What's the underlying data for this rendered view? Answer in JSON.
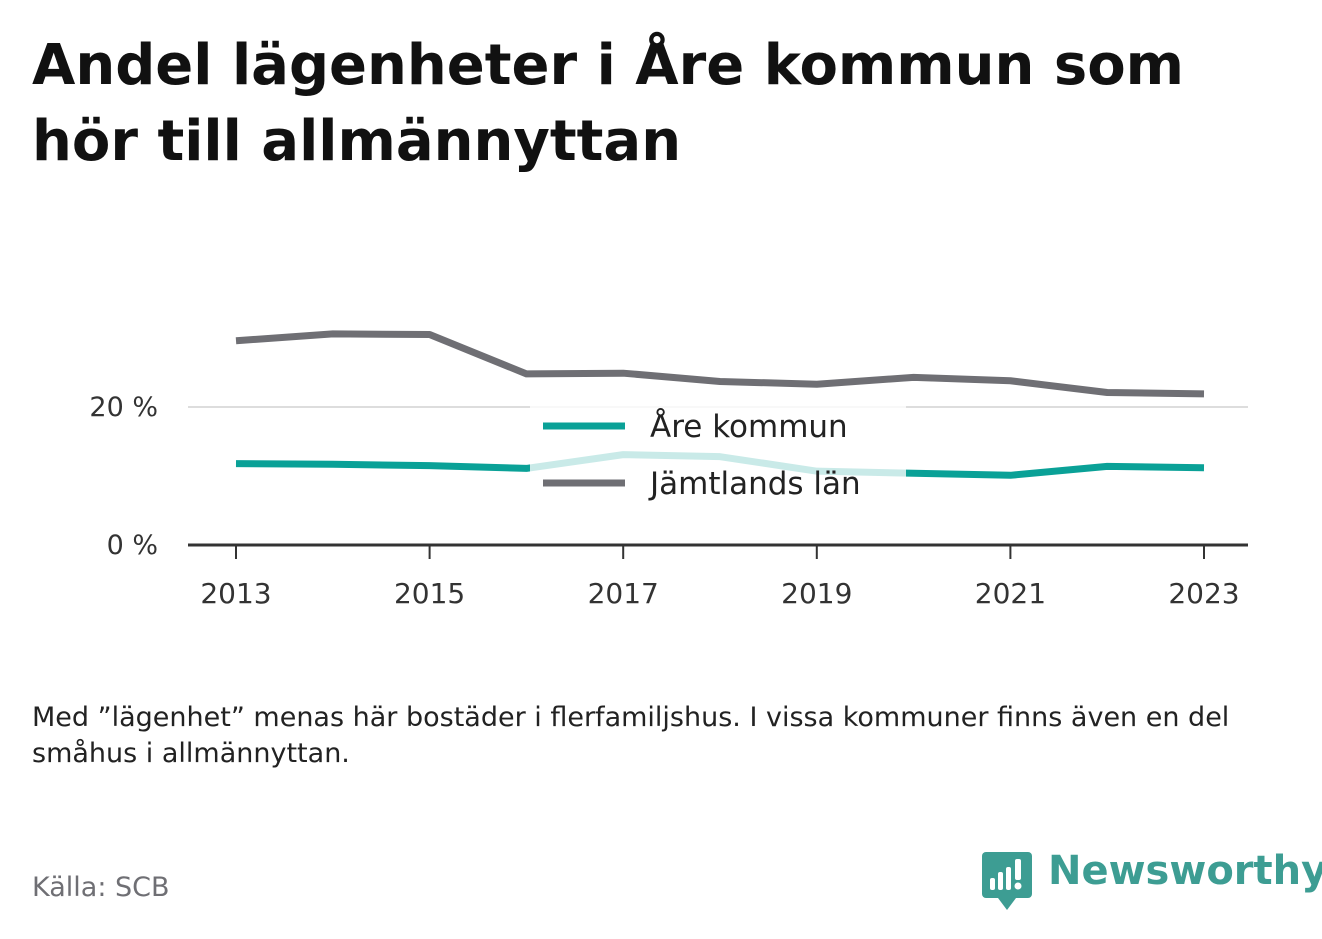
{
  "title": "Andel lägenheter i Åre kommun som hör till allmännyttan",
  "note": "Med ”lägenhet” menas här bostäder i flerfamiljshus. I vissa kommuner finns även en del småhus i allmännyttan.",
  "source": "Källa: SCB",
  "brand": {
    "name": "Newsworthy",
    "color": "#3d9d93"
  },
  "chart_data": {
    "type": "line",
    "x": [
      2013,
      2014,
      2015,
      2016,
      2017,
      2018,
      2019,
      2020,
      2021,
      2022,
      2023
    ],
    "x_ticks": [
      2013,
      2015,
      2017,
      2019,
      2021,
      2023
    ],
    "y_ticks": [
      {
        "value": 0,
        "label": "0 %"
      },
      {
        "value": 20,
        "label": "20 %"
      }
    ],
    "ylim": [
      0,
      30
    ],
    "grid": true,
    "legend_position": "center",
    "series": [
      {
        "name": "Åre kommun",
        "color": "#0aa197",
        "values": [
          11.8,
          11.7,
          11.5,
          11.1,
          13.1,
          12.8,
          10.7,
          10.4,
          10.1,
          11.4,
          11.2
        ]
      },
      {
        "name": "Jämtlands län",
        "color": "#6f6f74",
        "values": [
          29.6,
          30.6,
          30.5,
          24.8,
          24.9,
          23.7,
          23.3,
          24.3,
          23.8,
          22.1,
          21.9
        ]
      }
    ]
  }
}
